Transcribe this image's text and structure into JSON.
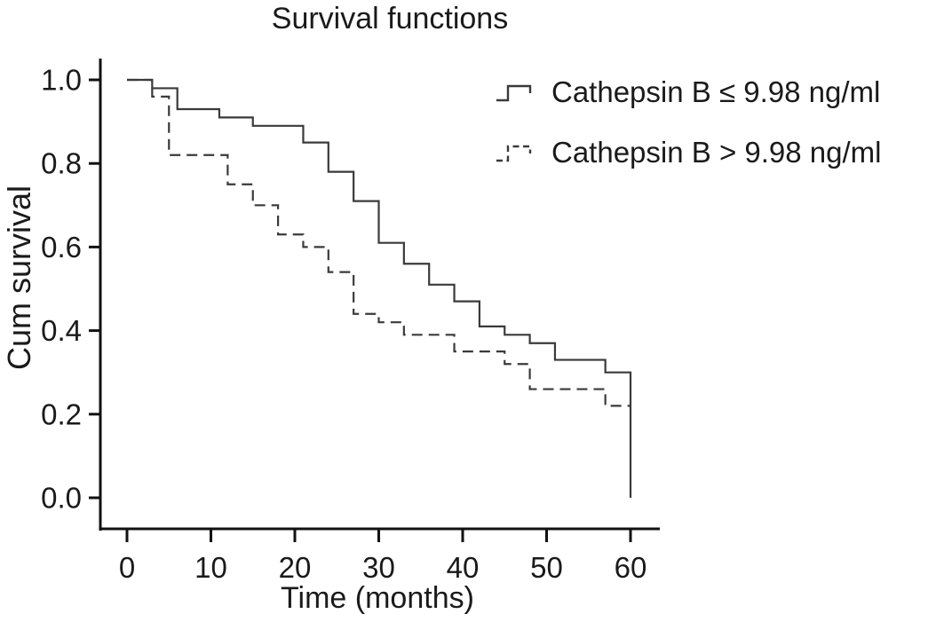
{
  "title": "Survival functions",
  "axes": {
    "y_label": "Cum survival",
    "x_label": "Time (months)"
  },
  "legend": {
    "items": [
      {
        "label": "Cathepsin B ≤ 9.98 ng/ml",
        "line_style": "solid"
      },
      {
        "label": "Cathepsin B > 9.98 ng/ml",
        "line_style": "dashed"
      }
    ]
  },
  "colors": {
    "curve": "#3a3a3a",
    "axis": "#111111",
    "text": "#1a1a1a",
    "background": "#ffffff"
  },
  "chart_data": {
    "type": "line",
    "subtype": "kaplan-meier-step",
    "title": "Survival functions",
    "xlabel": "Time (months)",
    "ylabel": "Cum survival",
    "xlim": [
      0,
      63
    ],
    "ylim": [
      0.0,
      1.0
    ],
    "x_ticks": [
      0,
      10,
      20,
      30,
      40,
      50,
      60
    ],
    "x_tick_labels": [
      "0",
      "10",
      "20",
      "30",
      "40",
      "50",
      "60"
    ],
    "y_ticks": [
      1.0,
      0.8,
      0.6,
      0.4,
      0.2,
      0.0
    ],
    "y_tick_labels": [
      "1.0",
      "0.8",
      "0.6",
      "0.4",
      "0.2",
      "0.0"
    ],
    "grid": false,
    "legend_position": "upper right",
    "series": [
      {
        "name": "Cathepsin B ≤ 9.98 ng/ml",
        "line": "solid",
        "color": "#3a3a3a",
        "steps": [
          [
            0,
            1.0
          ],
          [
            3,
            0.98
          ],
          [
            6,
            0.93
          ],
          [
            11,
            0.91
          ],
          [
            15,
            0.89
          ],
          [
            21,
            0.85
          ],
          [
            24,
            0.78
          ],
          [
            27,
            0.71
          ],
          [
            30,
            0.61
          ],
          [
            33,
            0.56
          ],
          [
            36,
            0.51
          ],
          [
            39,
            0.47
          ],
          [
            42,
            0.41
          ],
          [
            45,
            0.39
          ],
          [
            48,
            0.37
          ],
          [
            51,
            0.33
          ],
          [
            57,
            0.3
          ],
          [
            60,
            0.0
          ]
        ]
      },
      {
        "name": "Cathepsin B > 9.98 ng/ml",
        "line": "dashed",
        "color": "#3a3a3a",
        "steps": [
          [
            0,
            1.0
          ],
          [
            3,
            0.96
          ],
          [
            5,
            0.82
          ],
          [
            12,
            0.75
          ],
          [
            15,
            0.7
          ],
          [
            18,
            0.63
          ],
          [
            21,
            0.6
          ],
          [
            24,
            0.54
          ],
          [
            27,
            0.44
          ],
          [
            30,
            0.42
          ],
          [
            33,
            0.39
          ],
          [
            39,
            0.35
          ],
          [
            45,
            0.32
          ],
          [
            48,
            0.26
          ],
          [
            57,
            0.22
          ],
          [
            60,
            0.22
          ]
        ]
      }
    ]
  }
}
